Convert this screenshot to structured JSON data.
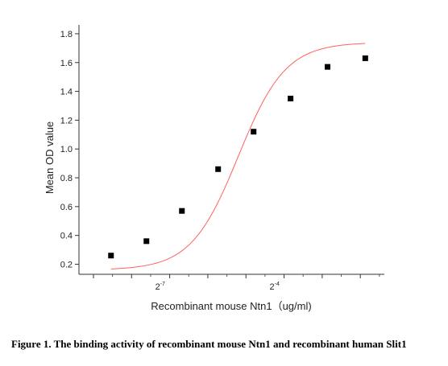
{
  "caption": "Figure 1. The binding activity of recombinant mouse Ntn1 and recombinant human Slit1",
  "chart_data": {
    "type": "scatter",
    "title": "",
    "xlabel": "Recombinant mouse Ntn1（ug/ml)",
    "ylabel": "Mean OD value",
    "xscale": "log2",
    "ylim": [
      0.13,
      1.85
    ],
    "yticks": [
      0.2,
      0.4,
      0.6,
      0.8,
      1.0,
      1.2,
      1.4,
      1.6,
      1.8
    ],
    "ytick_labels": [
      "0.2",
      "0.4",
      "0.6",
      "0.8",
      "1.0",
      "1.2",
      "1.4",
      "1.6",
      "1.8"
    ],
    "xlim_log2": [
      -9.38,
      -1.37
    ],
    "xtick_log2": [
      -9,
      -8,
      -7,
      -6,
      -5,
      -4,
      -3,
      -2
    ],
    "xtick_labels": [
      {
        "base": "2",
        "exp": "-7",
        "at_log2": -7.25
      },
      {
        "base": "2",
        "exp": "-4",
        "at_log2": -4.25
      }
    ],
    "grid": false,
    "legend": "none",
    "marker_color": "#000000",
    "fit_color": "#ff6060",
    "series": [
      {
        "x_log2": [
          -8.54,
          -7.61,
          -6.68,
          -5.73,
          -4.8,
          -3.83,
          -2.86,
          -1.87
        ],
        "values": [
          0.26,
          0.36,
          0.57,
          0.86,
          1.12,
          1.35,
          1.57,
          1.63
        ]
      }
    ]
  }
}
